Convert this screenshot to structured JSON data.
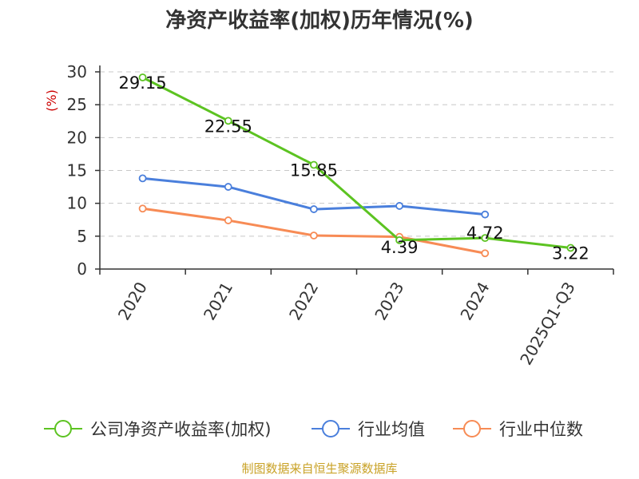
{
  "title": "净资产收益率(加权)历年情况(%)",
  "source": "制图数据来自恒生聚源数据库",
  "colors": {
    "company": "#5cc321",
    "industry_avg": "#4a7fdc",
    "industry_median": "#f78b55",
    "axis": "#333333",
    "grid": "#c8c8c8",
    "ylabel": "#cc0000",
    "source": "#c9a227"
  },
  "chart_data": {
    "type": "line",
    "title": "净资产收益率(加权)历年情况(%)",
    "xlabel": "",
    "ylabel": "(%)",
    "categories": [
      "2020",
      "2021",
      "2022",
      "2023",
      "2024",
      "2025Q1-Q3"
    ],
    "ylim": [
      0,
      30
    ],
    "yticks": [
      0,
      5,
      10,
      15,
      20,
      25,
      30
    ],
    "grid": true,
    "legend_position": "bottom",
    "series": [
      {
        "name": "公司净资产收益率(加权)",
        "key": "company",
        "values": [
          29.15,
          22.55,
          15.85,
          4.39,
          4.72,
          3.22
        ],
        "labels": [
          "29.15",
          "22.55",
          "15.85",
          "4.39",
          "4.72",
          "3.22"
        ]
      },
      {
        "name": "行业均值",
        "key": "industry_avg",
        "values": [
          13.8,
          12.5,
          9.1,
          9.6,
          8.3,
          null
        ]
      },
      {
        "name": "行业中位数",
        "key": "industry_median",
        "values": [
          9.2,
          7.4,
          5.1,
          4.9,
          2.4,
          null
        ]
      }
    ]
  }
}
